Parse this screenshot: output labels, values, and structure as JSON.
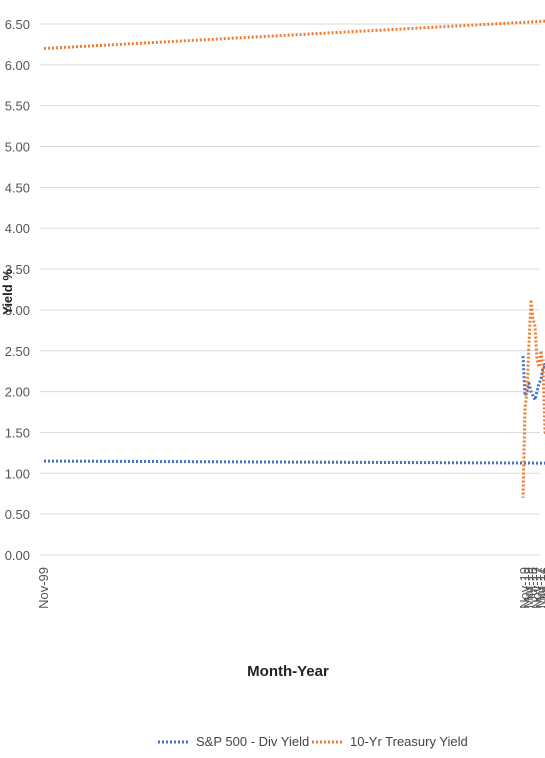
{
  "chart_data": {
    "type": "line",
    "title": "",
    "xlabel": "Month-Year",
    "ylabel": "Yield %",
    "ylim": [
      0,
      6.5
    ],
    "y_ticks": [
      "0.00",
      "0.50",
      "1.00",
      "1.50",
      "2.00",
      "2.50",
      "3.00",
      "3.50",
      "4.00",
      "4.50",
      "5.00",
      "5.50",
      "6.00",
      "6.50"
    ],
    "x_tick_labels": [
      "Nov-99",
      "Jul-00",
      "Mar-01",
      "Nov-01",
      "Jul-02",
      "Mar-03",
      "Nov-03",
      "Jul-04",
      "Mar-05",
      "Nov-05",
      "Jul-06",
      "Mar-07",
      "Nov-07",
      "Jul-08",
      "Mar-09",
      "Nov-09",
      "Jul-10",
      "Mar-11",
      "Nov-11",
      "Jul-12",
      "Mar-13",
      "Nov-13",
      "Jul-14",
      "Mar-15",
      "Nov-15",
      "Jul-16",
      "Mar-17",
      "Nov-17",
      "Jul-18",
      "Mar-19",
      "Nov-19"
    ],
    "grid": true,
    "legend_position": "bottom",
    "series": [
      {
        "name": "S&P 500 - Div Yield",
        "color": "#4472c4",
        "x": [
          "Nov-99",
          "Mar-00",
          "Jul-00",
          "Nov-00",
          "Mar-01",
          "Jul-01",
          "Nov-01",
          "Mar-02",
          "Jul-02",
          "Nov-02",
          "Mar-03",
          "Jul-03",
          "Nov-03",
          "Mar-04",
          "Jul-04",
          "Nov-04",
          "Mar-05",
          "Jul-05",
          "Nov-05",
          "Mar-06",
          "Jul-06",
          "Nov-06",
          "Mar-07",
          "Jul-07",
          "Nov-07",
          "Mar-08",
          "Jul-08",
          "Nov-08",
          "Mar-09",
          "Jul-09",
          "Nov-09",
          "Mar-10",
          "Jul-10",
          "Nov-10",
          "Mar-11",
          "Jul-11",
          "Nov-11",
          "Mar-12",
          "Jul-12",
          "Nov-12",
          "Mar-13",
          "Jul-13",
          "Nov-13",
          "Mar-14",
          "Jul-14",
          "Nov-14",
          "Mar-15",
          "Jul-15",
          "Nov-15",
          "Mar-16",
          "Jul-16",
          "Nov-16",
          "Mar-17",
          "Jul-17",
          "Nov-17",
          "Mar-18",
          "Jul-18",
          "Nov-18",
          "Mar-19",
          "Jul-19",
          "Nov-19",
          "Mar-20"
        ],
        "values": [
          1.15,
          1.12,
          1.12,
          1.2,
          1.35,
          1.45,
          1.55,
          1.6,
          1.95,
          1.85,
          1.9,
          1.6,
          1.5,
          1.6,
          1.65,
          1.65,
          1.75,
          1.9,
          1.92,
          1.95,
          2.0,
          1.9,
          1.85,
          1.85,
          1.9,
          2.3,
          2.5,
          3.2,
          4.0,
          3.0,
          3.7,
          2.8,
          2.4,
          2.3,
          2.1,
          2.1,
          2.3,
          2.2,
          2.2,
          2.15,
          2.2,
          2.2,
          2.3,
          2.2,
          2.35,
          2.3,
          2.1,
          2.2,
          2.3,
          2.45,
          2.3,
          2.3,
          2.15,
          2.1,
          2.0,
          1.9,
          1.95,
          2.0,
          2.1,
          2.0,
          1.95,
          2.45
        ]
      },
      {
        "name": "10-Yr Treasury Yield",
        "color": "#ed7d31",
        "x": [
          "Nov-99",
          "Mar-00",
          "Jul-00",
          "Nov-00",
          "Mar-01",
          "Jul-01",
          "Nov-01",
          "Mar-02",
          "Jul-02",
          "Nov-02",
          "Mar-03",
          "Jul-03",
          "Nov-03",
          "Mar-04",
          "Jul-04",
          "Nov-04",
          "Mar-05",
          "Jul-05",
          "Nov-05",
          "Mar-06",
          "Jul-06",
          "Nov-06",
          "Mar-07",
          "Jul-07",
          "Nov-07",
          "Mar-08",
          "Jul-08",
          "Nov-08",
          "Mar-09",
          "Jul-09",
          "Nov-09",
          "Mar-10",
          "Jul-10",
          "Nov-10",
          "Mar-11",
          "Jul-11",
          "Nov-11",
          "Mar-12",
          "Jul-12",
          "Nov-12",
          "Mar-13",
          "Jul-13",
          "Nov-13",
          "Mar-14",
          "Jul-14",
          "Nov-14",
          "Mar-15",
          "Jul-15",
          "Nov-15",
          "Mar-16",
          "Jul-16",
          "Nov-16",
          "Mar-17",
          "Jul-17",
          "Nov-17",
          "Mar-18",
          "Jul-18",
          "Nov-18",
          "Mar-19",
          "Jul-19",
          "Nov-19",
          "Mar-20"
        ],
        "values": [
          6.2,
          6.6,
          6.1,
          5.6,
          4.9,
          5.4,
          4.3,
          5.3,
          4.6,
          3.6,
          4.2,
          3.4,
          4.4,
          4.0,
          4.6,
          4.2,
          4.5,
          4.0,
          4.5,
          4.7,
          5.1,
          4.6,
          4.7,
          5.0,
          4.2,
          3.5,
          4.0,
          3.8,
          2.3,
          3.4,
          3.2,
          3.9,
          2.9,
          2.6,
          3.4,
          3.1,
          2.0,
          2.2,
          1.6,
          1.6,
          1.9,
          2.6,
          2.7,
          2.6,
          2.5,
          2.3,
          2.0,
          2.3,
          2.2,
          1.8,
          1.5,
          2.3,
          2.5,
          2.3,
          2.4,
          2.8,
          2.9,
          3.1,
          2.6,
          2.0,
          1.8,
          0.7
        ]
      }
    ]
  }
}
